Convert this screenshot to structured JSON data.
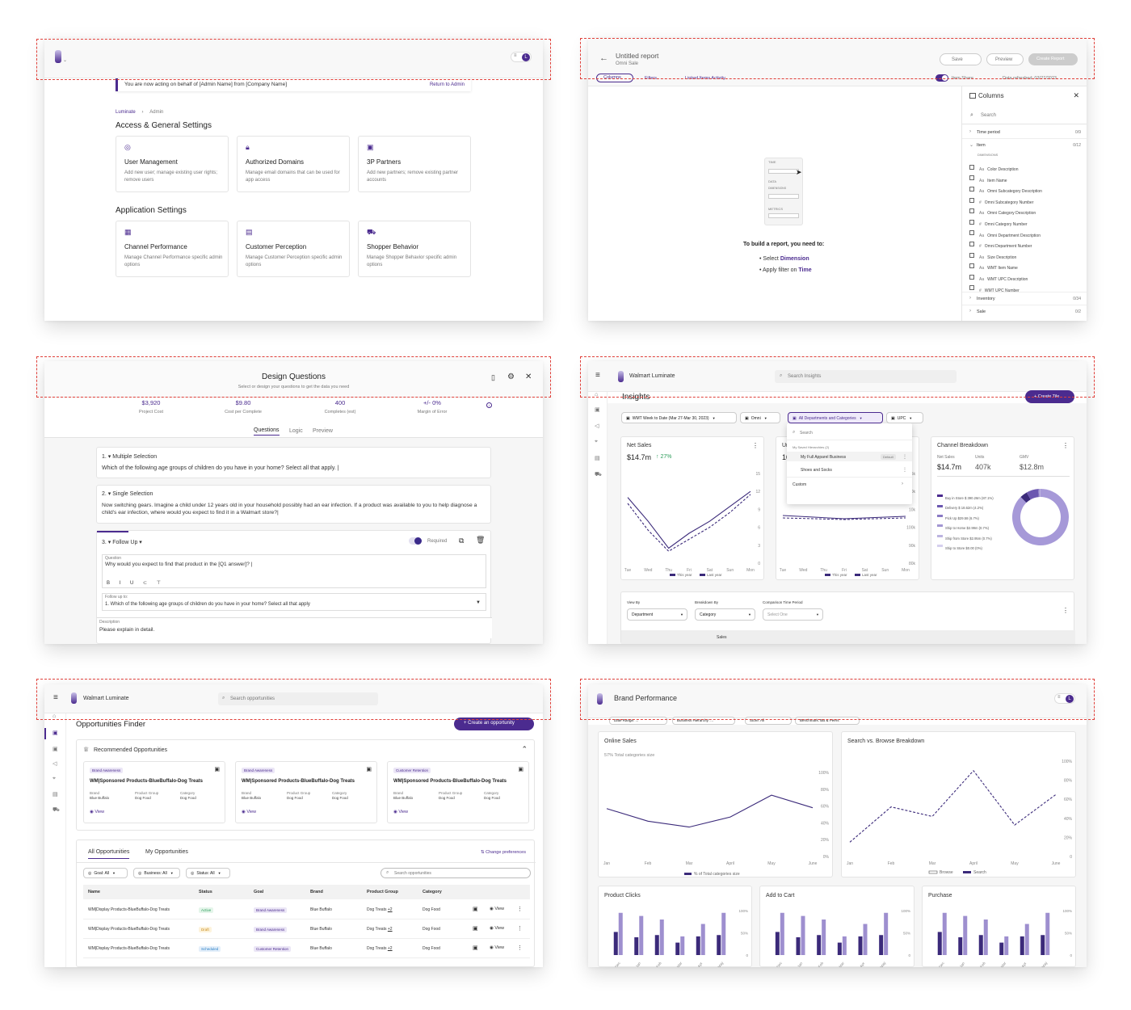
{
  "colors": {
    "purple": "#4b2b8f",
    "lightPurple": "#9e8fcf",
    "dash": "#e0403a",
    "green": "#2e9d5b"
  },
  "p1": {
    "banner": "You are now acting on behalf of [Admin Name] from [Company Name]",
    "return_link": "Return to Admin",
    "crumbs": [
      "Luminate",
      "Admin"
    ],
    "section1": "Access & General Settings",
    "section2": "Application Settings",
    "tiles": [
      {
        "icon": "user-icon",
        "title": "User Management",
        "desc": "Add new user; manage existing user rights; remove users"
      },
      {
        "icon": "lock-icon",
        "title": "Authorized Domains",
        "desc": "Manage email domains that can be used for app access"
      },
      {
        "icon": "partner-icon",
        "title": "3P Partners",
        "desc": "Add new partners; remove existing partner accounts"
      },
      {
        "icon": "chart-icon",
        "title": "Channel Performance",
        "desc": "Manage Channel Performance specific admin options"
      },
      {
        "icon": "document-icon",
        "title": "Customer Perception",
        "desc": "Manage Customer Perception specific admin options"
      },
      {
        "icon": "cart-icon",
        "title": "Shopper Behavior",
        "desc": "Manage Shopper Behavior specific admin options"
      }
    ],
    "avatar": "L"
  },
  "p2": {
    "title": "Untitled report",
    "subtitle": "Omni Sale",
    "save": "Save",
    "preview": "Preview",
    "create": "Create Report",
    "tabs": [
      "Columns",
      "Filters",
      "Linked Items Activity"
    ],
    "toggle_label": "Item Share",
    "refresh": "Data refreshed: 03/27/2023",
    "panel_title": "Columns",
    "search": "Search",
    "groups": [
      {
        "name": "Time period",
        "count": "0/9"
      },
      {
        "name": "Item",
        "count": "0/12"
      }
    ],
    "dimensions": "DIMENSIONS",
    "items": [
      "Color Description",
      "Item Name",
      "Omni Subcategory Description",
      "Omni Subcategory Number",
      "Omni Category Description",
      "Omni Category Number",
      "Omni Department Description",
      "Omni Department Number",
      "Size Description",
      "WMT Item Name",
      "WMT UPC Description",
      "WMT UPC Number"
    ],
    "groups2": [
      {
        "name": "Inventory",
        "count": "0/34"
      },
      {
        "name": "Sale",
        "count": "0/2"
      }
    ],
    "empty_title": "To build a report, you need to:",
    "step1_prefix": "Select ",
    "step1_link": "Dimension",
    "step2_prefix": "Apply filter on ",
    "step2_link": "Time",
    "mini": [
      "TIME",
      "DATA",
      "DIMENSIONS",
      "METRICS"
    ]
  },
  "p3": {
    "title": "Design Questions",
    "subtitle": "Select or design your questions to get the data you need",
    "stats": [
      {
        "v": "$3,920",
        "l": "Project Cost"
      },
      {
        "v": "$9.80",
        "l": "Cost per Complete"
      },
      {
        "v": "400",
        "l": "Completes (est)"
      },
      {
        "v": "+/- 0%",
        "l": "Margin of Error"
      }
    ],
    "tabs": [
      "Questions",
      "Logic",
      "Preview"
    ],
    "q1_type": "1. ▾    Multiple Selection",
    "q1_text": "Which of the following age groups of children do you have in your home? Select all that apply. |",
    "q2_type": "2. ▾    Single Selection",
    "q2_text": "Now switching gears. Imagine a child under 12 years old in your household possibly had an ear infection. If a product was available to you to help diagnose a child's ear infection, where would you expect to find it in a Walmart store?|",
    "q3_type": "3. ▾    Follow Up ▾",
    "required": "Required",
    "question_label": "Question",
    "question_text": "Why would you expect to find that product in the [Q1 answer]? |",
    "follow_label": "Follow up to:",
    "follow_text": "1. Which of the following age groups of children do you have in your home? Select all that apply",
    "desc_label": "Description",
    "desc_text": "Please explain in detail."
  },
  "p4": {
    "app": "Walmart Luminate",
    "search": "Search Insights",
    "page": "Insights",
    "create": "+ Create Tile",
    "filters": [
      "WMT Week to Date (Mar 27-Mar 30, 2023)",
      "Omni",
      "All Departments and Categories",
      "UPC"
    ],
    "dd_search": "Search",
    "dd_heading": "My Saved Hierarchies (2)",
    "dd_items": [
      "My Full Apparel Business",
      "Shoes and Socks"
    ],
    "dd_default": "Default",
    "dd_custom": "Custom",
    "ns_title": "Net Sales",
    "ns_value": "$14.7m",
    "ns_delta": "↑ 27%",
    "ns_yticks": [
      "15",
      "12",
      "9",
      "6",
      "3",
      "0"
    ],
    "days": [
      "Tue",
      "Wed",
      "Thu",
      "Fri",
      "Sat",
      "Sun",
      "Mon"
    ],
    "legend": [
      "This year",
      "Last year"
    ],
    "un_title": "Un",
    "un_value": "10",
    "un_yticks": [
      "5k",
      "00k",
      "10k",
      "100k",
      "90k",
      "80k"
    ],
    "cb_title": "Channel Breakdown",
    "cb_cols": [
      "Net Sales",
      "Units",
      "GMV"
    ],
    "cb_vals": [
      "$14.7m",
      "407k",
      "$12.8m"
    ],
    "cb_rows": [
      "Buy in Store $ 390.26m (87.1%)",
      "Delivery $ 18.62m (4.2%)",
      "Pick Up $29.58 (6.7%)",
      "Ship to Home $2.99m (0.7%)",
      "Ship from Store $2.95m (0.7%)",
      "Ship to Store $0.00 (0%)"
    ],
    "view_by": "View By",
    "breakdown_by": "Breakdown By",
    "compare": "Comparison Time Period",
    "view_val": "Department",
    "breakdown_val": "Category",
    "compare_val": "Select One",
    "table_head": "Sales"
  },
  "p5": {
    "app": "Walmart Luminate",
    "search": "Search opportunities",
    "page": "Opportunities Finder",
    "create": "+  Create an opportunity",
    "rec_title": "Recommended Opportunities",
    "cards": [
      {
        "tag": "Brand Awareness",
        "title": "WM|Sponsored Products-BlueBuffalo-Dog Treats"
      },
      {
        "tag": "Brand Awareness",
        "title": "WM|Sponsored Products-BlueBuffalo-Dog Treats"
      },
      {
        "tag": "Customer Retention",
        "title": "WM|Sponsored Products-BlueBuffalo-Dog Treats"
      }
    ],
    "meta_labels": [
      "Brand",
      "Product Group",
      "Category"
    ],
    "meta_vals": [
      "Blue Buffalo",
      "Dog Food",
      "Dog Food"
    ],
    "view": "View",
    "tabs": [
      "All Opportunities",
      "My Opportunities"
    ],
    "prefs": "Change preferences",
    "filters": [
      "Goal: All",
      "Business: All",
      "Status: All"
    ],
    "cols": [
      "Name",
      "Status",
      "Goal",
      "Brand",
      "Product Group",
      "Category"
    ],
    "rows": [
      {
        "name": "WM|Display Products-BlueBuffalo-Dog Treats",
        "status": "Active",
        "goal": "Brand Awareness",
        "brand": "Blue Buffalo",
        "pg": "Dog Treats",
        "more": "+2",
        "cat": "Dog Food"
      },
      {
        "name": "WM|Display Products-BlueBuffalo-Dog Treats",
        "status": "Draft",
        "goal": "Brand Awareness",
        "brand": "Blue Buffalo",
        "pg": "Dog Treats",
        "more": "+2",
        "cat": "Dog Food"
      },
      {
        "name": "WM|Display Products-BlueBuffalo-Dog Treats",
        "status": "Scheduled",
        "goal": "Customer Retention",
        "brand": "Blue Buffalo",
        "pg": "Dog Treats",
        "more": "+2",
        "cat": "Dog Food"
      }
    ]
  },
  "p6": {
    "title": "Brand Performance",
    "filters": [
      "Date Range: ...",
      "Business Hierarchy: ...",
      "Store: All",
      "Benchmark: BB & Peers"
    ],
    "avatar": "L"
  },
  "chart_data": [
    {
      "type": "line",
      "title": "Online Sales",
      "subtitle": "57% Total categories size",
      "categories": [
        "Jan",
        "Feb",
        "Mar",
        "April",
        "May",
        "June"
      ],
      "ylim": [
        0,
        100
      ],
      "yticks": [
        "100%",
        "80%",
        "60%",
        "40%",
        "20%",
        "0%"
      ],
      "series": [
        {
          "name": "% of Total categories size",
          "values": [
            57,
            42,
            35,
            47,
            73,
            58
          ]
        }
      ]
    },
    {
      "type": "line",
      "title": "Search vs. Browse Breakdown",
      "categories": [
        "Jan",
        "Feb",
        "Mar",
        "April",
        "May",
        "June"
      ],
      "ylim": [
        0,
        100
      ],
      "yticks": [
        "100%",
        "80%",
        "60%",
        "40%",
        "20%",
        "0"
      ],
      "series": [
        {
          "name": "Browse",
          "values": [
            15,
            12,
            14,
            18,
            20,
            22
          ]
        },
        {
          "name": "Search",
          "values": [
            15,
            52,
            42,
            90,
            33,
            65
          ]
        }
      ]
    },
    {
      "type": "bar",
      "title": "Product Clicks",
      "categories": [
        "Dec",
        "Jan",
        "Feb",
        "Mar",
        "Apr",
        "May"
      ],
      "ylim": [
        0,
        100
      ],
      "yticks": [
        "100%",
        "50%",
        "0"
      ],
      "series": [
        {
          "values": [
            52,
            40,
            45,
            28,
            42,
            45
          ]
        },
        {
          "values": [
            95,
            88,
            80,
            42,
            70,
            95
          ]
        }
      ]
    },
    {
      "type": "bar",
      "title": "Add to Cart",
      "categories": [
        "Dec",
        "Jan",
        "Feb",
        "Mar",
        "Apr",
        "May"
      ],
      "ylim": [
        0,
        100
      ],
      "yticks": [
        "100%",
        "50%",
        "0"
      ],
      "series": [
        {
          "values": [
            52,
            40,
            45,
            28,
            42,
            45
          ]
        },
        {
          "values": [
            95,
            88,
            80,
            42,
            70,
            95
          ]
        }
      ]
    },
    {
      "type": "bar",
      "title": "Purchase",
      "categories": [
        "Dec",
        "Jan",
        "Feb",
        "Mar",
        "Apr",
        "May"
      ],
      "ylim": [
        0,
        100
      ],
      "yticks": [
        "100%",
        "50%",
        "0"
      ],
      "series": [
        {
          "values": [
            52,
            40,
            45,
            28,
            42,
            45
          ]
        },
        {
          "values": [
            95,
            88,
            80,
            42,
            70,
            95
          ]
        }
      ]
    },
    {
      "type": "line",
      "title": "Net Sales",
      "categories": [
        "Tue",
        "Wed",
        "Thu",
        "Fri",
        "Sat",
        "Sun",
        "Mon"
      ],
      "ylim": [
        0,
        15
      ],
      "series": [
        {
          "name": "This year",
          "values": [
            11,
            7,
            2.5,
            5,
            7,
            9.5,
            12
          ]
        },
        {
          "name": "Last year",
          "values": [
            10,
            5.5,
            2,
            4,
            6,
            8.5,
            11.5
          ]
        }
      ]
    },
    {
      "type": "pie",
      "title": "Channel Breakdown",
      "categories": [
        "Buy in Store",
        "Delivery",
        "Pick Up",
        "Ship to Home",
        "Ship from Store",
        "Ship to Store"
      ],
      "values": [
        87.1,
        4.2,
        6.7,
        0.7,
        0.7,
        0
      ]
    }
  ]
}
